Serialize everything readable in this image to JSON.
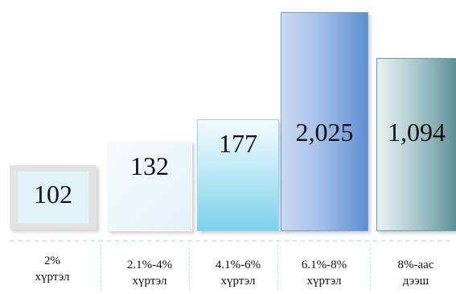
{
  "chart_data": {
    "type": "bar",
    "categories": [
      "2%\nхүртэл",
      "2.1%-4%\nхүртэл",
      "4.1%-6%\nхүртэл",
      "6.1%-8%\nхүртэл",
      "8%-аас\nдээш"
    ],
    "values": [
      102,
      132,
      177,
      2025,
      1094
    ],
    "value_labels": [
      "102",
      "132",
      "177",
      "2,025",
      "1,094"
    ],
    "title": "",
    "xlabel": "",
    "ylabel": "",
    "scale": "non-proportional (3D-style columns)",
    "colors": [
      "#d9eef5",
      "#eaf5fa",
      "#7fd0ea",
      "#7fa6d9",
      "#5f9aa3"
    ],
    "grid": false,
    "legend": "none"
  }
}
